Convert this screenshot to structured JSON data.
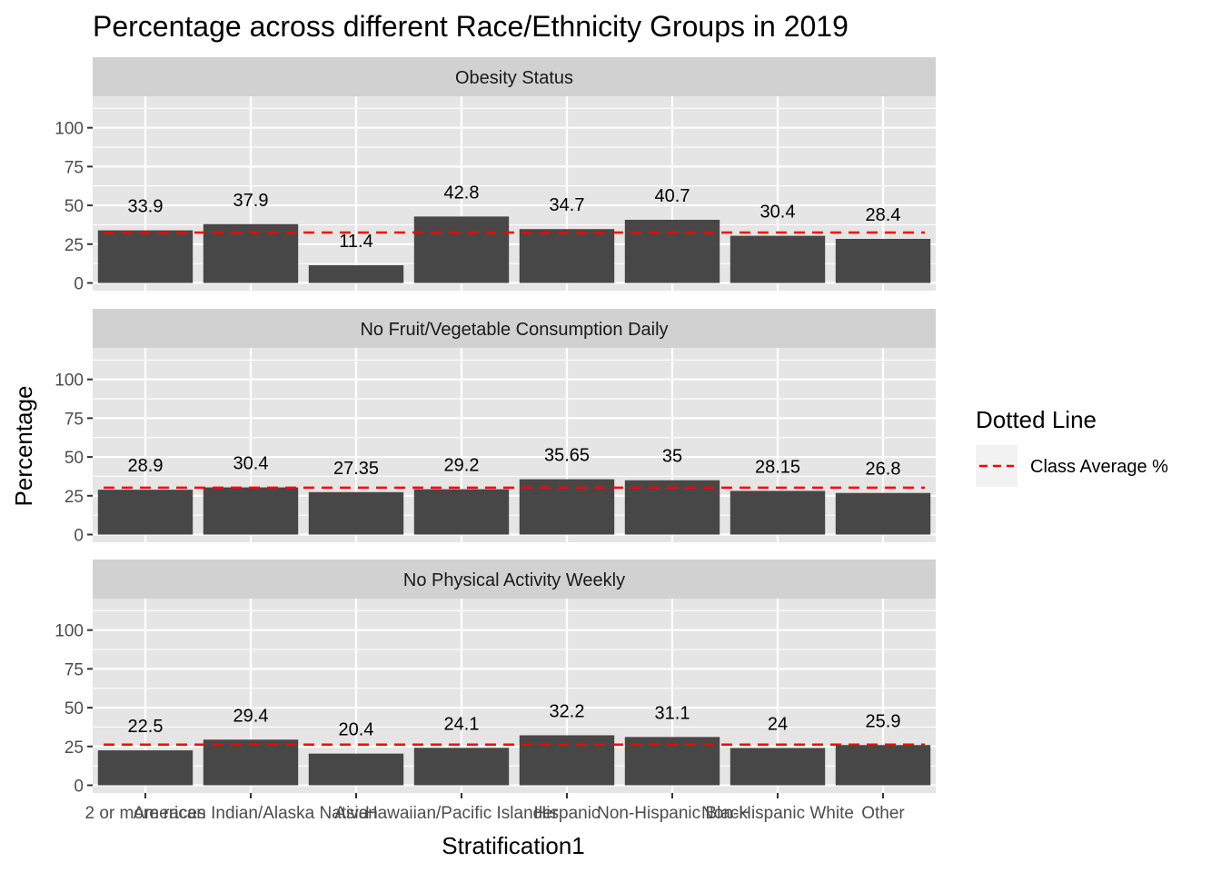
{
  "chart_data": {
    "type": "bar",
    "title": "Percentage across different Race/Ethnicity Groups in 2019",
    "xlabel": "Stratification1",
    "ylabel": "Percentage",
    "ylim": [
      0,
      120
    ],
    "yticks": [
      0,
      25,
      50,
      75,
      100
    ],
    "categories": [
      "2 or more races",
      "American Indian/Alaska Native",
      "Asian",
      "Hawaiian/Pacific Islander",
      "Hispanic",
      "Non-Hispanic Black",
      "Non-Hispanic White",
      "Other"
    ],
    "facets": [
      {
        "name": "Obesity Status",
        "values": [
          33.9,
          37.9,
          11.4,
          42.8,
          34.7,
          40.7,
          30.4,
          28.4
        ],
        "labels": [
          "33.9",
          "37.9",
          "11.4",
          "42.8",
          "34.7",
          "40.7",
          "30.4",
          "28.4"
        ],
        "average": 32.5
      },
      {
        "name": "No Fruit/Vegetable Consumption Daily",
        "values": [
          28.9,
          30.4,
          27.35,
          29.2,
          35.65,
          35,
          28.15,
          26.8
        ],
        "labels": [
          "28.9",
          "30.4",
          "27.35",
          "29.2",
          "35.65",
          "35",
          "28.15",
          "26.8"
        ],
        "average": 30.2
      },
      {
        "name": "No Physical Activity Weekly",
        "values": [
          22.5,
          29.4,
          20.4,
          24.1,
          32.2,
          31.1,
          24,
          25.9
        ],
        "labels": [
          "22.5",
          "29.4",
          "20.4",
          "24.1",
          "32.2",
          "31.1",
          "24",
          "25.9"
        ],
        "average": 26.2
      }
    ],
    "legend": {
      "title": "Dotted Line",
      "entries": [
        "Class Average %"
      ],
      "position": "right"
    },
    "grid": true,
    "colors": {
      "bar": "#474747",
      "panel_bg": "#e5e5e5",
      "strip_bg": "#d1d1d1",
      "grid": "#ffffff",
      "average_line": "#ff0000"
    }
  }
}
